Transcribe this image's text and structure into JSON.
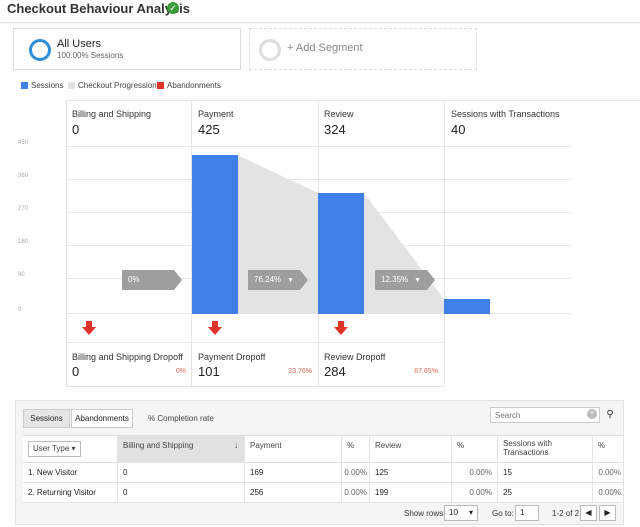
{
  "header": {
    "title": "Checkout Behaviour Analysis"
  },
  "segments": [
    {
      "name": "All Users",
      "sub": "100.00% Sessions"
    },
    {
      "name": "+ Add Segment"
    }
  ],
  "legend": [
    {
      "label": "Sessions",
      "color": "#3f7fe8"
    },
    {
      "label": "Checkout Progression",
      "color": "#e3e3e3"
    },
    {
      "label": "Abandonments",
      "color": "#e0342a"
    }
  ],
  "chart_data": {
    "type": "bar",
    "categories": [
      "Billing and Shipping",
      "Payment",
      "Review",
      "Sessions with Transactions"
    ],
    "values": [
      0,
      425,
      324,
      40
    ],
    "yticks": [
      "450",
      "360",
      "270",
      "180",
      "90",
      "0"
    ],
    "ylim": [
      0,
      450
    ],
    "progression": [
      "0%",
      "76.24%",
      "12.35%"
    ],
    "dropoffs": [
      {
        "label": "Billing and Shipping Dropoff",
        "value": "0",
        "pct": "0%"
      },
      {
        "label": "Payment Dropoff",
        "value": "101",
        "pct": "23.76%"
      },
      {
        "label": "Review Dropoff",
        "value": "284",
        "pct": "87.65%"
      }
    ]
  },
  "steps": [
    {
      "label": "Billing and Shipping",
      "value": "0"
    },
    {
      "label": "Payment",
      "value": "425"
    },
    {
      "label": "Review",
      "value": "324"
    },
    {
      "label": "Sessions with Transactions",
      "value": "40"
    }
  ],
  "table": {
    "tabs": [
      "Sessions",
      "Abandonments"
    ],
    "completion_label": "% Completion rate",
    "search_placeholder": "Search",
    "headers": [
      "User Type",
      "Billing and Shipping",
      "Payment",
      "%",
      "Review",
      "%",
      "Sessions with Transactions",
      "%"
    ],
    "rows": [
      {
        "index": "1.",
        "type": "New Visitor",
        "billing": "0",
        "payment": "169",
        "p1": "0.00%",
        "review": "125",
        "p2": "0.00%",
        "tx": "15",
        "p3": "0.00%"
      },
      {
        "index": "2.",
        "type": "Returning Visitor",
        "billing": "0",
        "payment": "256",
        "p1": "0.00%",
        "review": "199",
        "p2": "0.00%",
        "tx": "25",
        "p3": "0.00%"
      }
    ],
    "footer": {
      "show_rows_label": "Show rows:",
      "show_rows_value": "10",
      "goto_label": "Go to:",
      "goto_value": "1",
      "range": "1-2 of 2"
    }
  }
}
